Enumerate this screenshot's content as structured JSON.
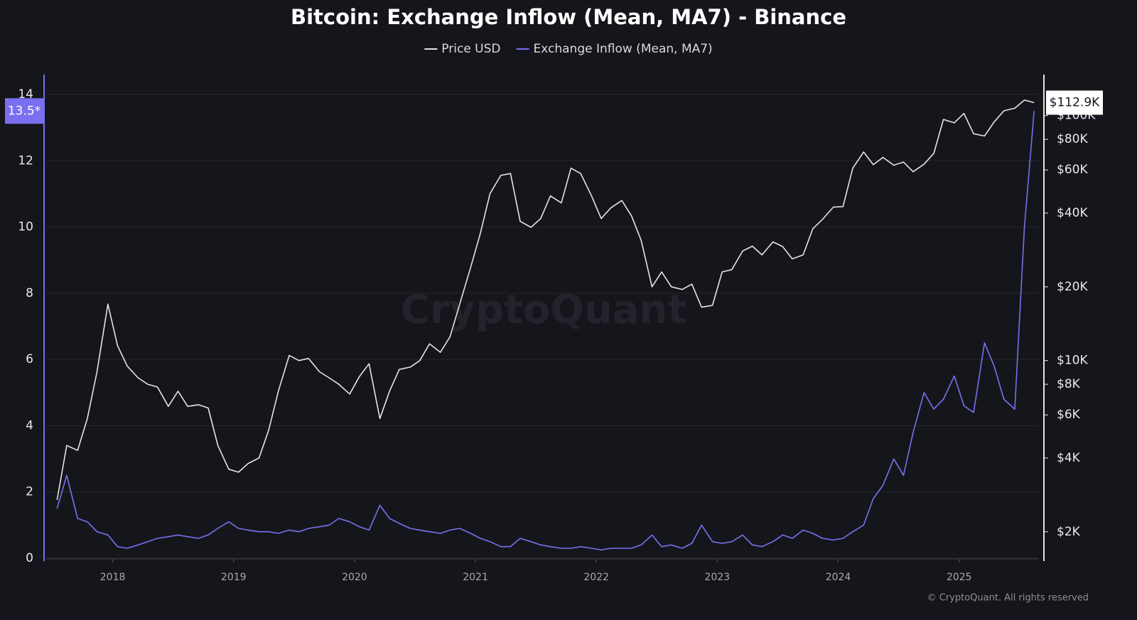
{
  "chart_data": {
    "type": "line",
    "title": "Bitcoin: Exchange Inflow (Mean, MA7) - Binance",
    "watermark": "CryptoQuant",
    "copyright": "© CryptoQuant. All rights reserved",
    "x": [
      2017.54,
      2017.62,
      2017.71,
      2017.79,
      2017.87,
      2017.96,
      2018.04,
      2018.12,
      2018.21,
      2018.29,
      2018.37,
      2018.46,
      2018.54,
      2018.62,
      2018.71,
      2018.79,
      2018.87,
      2018.96,
      2019.04,
      2019.12,
      2019.21,
      2019.29,
      2019.37,
      2019.46,
      2019.54,
      2019.62,
      2019.71,
      2019.79,
      2019.87,
      2019.96,
      2020.04,
      2020.12,
      2020.21,
      2020.29,
      2020.37,
      2020.46,
      2020.54,
      2020.62,
      2020.71,
      2020.79,
      2020.87,
      2020.96,
      2021.04,
      2021.12,
      2021.21,
      2021.29,
      2021.37,
      2021.46,
      2021.54,
      2021.62,
      2021.71,
      2021.79,
      2021.87,
      2021.96,
      2022.04,
      2022.12,
      2022.21,
      2022.29,
      2022.37,
      2022.46,
      2022.54,
      2022.62,
      2022.71,
      2022.79,
      2022.87,
      2022.96,
      2023.04,
      2023.12,
      2023.21,
      2023.29,
      2023.37,
      2023.46,
      2023.54,
      2023.62,
      2023.71,
      2023.79,
      2023.87,
      2023.96,
      2024.04,
      2024.12,
      2024.21,
      2024.29,
      2024.37,
      2024.46,
      2024.54,
      2024.62,
      2024.71,
      2024.79,
      2024.87,
      2024.96,
      2025.04,
      2025.12,
      2025.21,
      2025.29,
      2025.37,
      2025.46,
      2025.54,
      2025.62
    ],
    "xlim": [
      2017.45,
      2025.66
    ],
    "xticks": [
      2018,
      2019,
      2020,
      2021,
      2022,
      2023,
      2024,
      2025
    ],
    "ylim": [
      0,
      14.6
    ],
    "yticks": [
      0,
      2,
      4,
      6,
      8,
      10,
      12,
      14
    ],
    "y2lim": [
      1560,
      147000
    ],
    "y2scale": "log",
    "y2ticks": [
      {
        "value": 2000,
        "label": "$2K"
      },
      {
        "value": 4000,
        "label": "$4K"
      },
      {
        "value": 6000,
        "label": "$6K"
      },
      {
        "value": 8000,
        "label": "$8K"
      },
      {
        "value": 10000,
        "label": "$10K"
      },
      {
        "value": 20000,
        "label": "$20K"
      },
      {
        "value": 40000,
        "label": "$40K"
      },
      {
        "value": 60000,
        "label": "$60K"
      },
      {
        "value": 80000,
        "label": "$80K"
      },
      {
        "value": 100000,
        "label": "$100K"
      }
    ],
    "grid": true,
    "legend": "top",
    "series": [
      {
        "name": "Price USD",
        "color": "#e4e4e8",
        "axis": "y2",
        "last_label": "$112.9K",
        "values": [
          2700,
          4500,
          4300,
          5800,
          9000,
          17000,
          11500,
          9500,
          8500,
          8000,
          7800,
          6500,
          7500,
          6500,
          6600,
          6400,
          4500,
          3600,
          3500,
          3800,
          4000,
          5200,
          7500,
          10500,
          10000,
          10200,
          9000,
          8500,
          8000,
          7300,
          8600,
          9700,
          5800,
          7500,
          9200,
          9400,
          10000,
          11700,
          10800,
          12500,
          17000,
          24000,
          33000,
          48000,
          57000,
          58000,
          37000,
          35000,
          38000,
          47000,
          44000,
          61000,
          58000,
          47000,
          38000,
          42000,
          45000,
          39000,
          31000,
          20000,
          23000,
          20000,
          19500,
          20500,
          16500,
          16800,
          23000,
          23500,
          28000,
          29300,
          27000,
          30500,
          29200,
          26000,
          27000,
          34500,
          37700,
          42300,
          42500,
          61000,
          71000,
          63000,
          67500,
          62700,
          64600,
          59000,
          63300,
          70000,
          96400,
          93400,
          102000,
          84300,
          82500,
          94200,
          104600,
          107100,
          115700,
          112900
        ]
      },
      {
        "name": "Exchange Inflow (Mean, MA7)",
        "color": "#7a6ff0",
        "axis": "y",
        "last_label": "13.5*",
        "values": [
          1.5,
          2.5,
          1.2,
          1.1,
          0.8,
          0.7,
          0.35,
          0.3,
          0.4,
          0.5,
          0.6,
          0.65,
          0.7,
          0.65,
          0.6,
          0.7,
          0.9,
          1.1,
          0.9,
          0.85,
          0.8,
          0.8,
          0.75,
          0.85,
          0.8,
          0.9,
          0.95,
          1.0,
          1.2,
          1.1,
          0.95,
          0.85,
          1.6,
          1.2,
          1.05,
          0.9,
          0.85,
          0.8,
          0.75,
          0.85,
          0.9,
          0.75,
          0.6,
          0.5,
          0.35,
          0.35,
          0.6,
          0.5,
          0.4,
          0.35,
          0.3,
          0.3,
          0.35,
          0.3,
          0.25,
          0.3,
          0.3,
          0.3,
          0.4,
          0.7,
          0.35,
          0.4,
          0.3,
          0.45,
          1.0,
          0.5,
          0.45,
          0.5,
          0.7,
          0.4,
          0.35,
          0.5,
          0.7,
          0.6,
          0.85,
          0.75,
          0.6,
          0.55,
          0.6,
          0.8,
          1.0,
          1.8,
          2.2,
          3.0,
          2.5,
          3.8,
          5.0,
          4.5,
          4.8,
          5.5,
          4.6,
          4.4,
          6.5,
          5.8,
          4.8,
          4.5,
          10.0,
          13.5
        ]
      }
    ]
  }
}
